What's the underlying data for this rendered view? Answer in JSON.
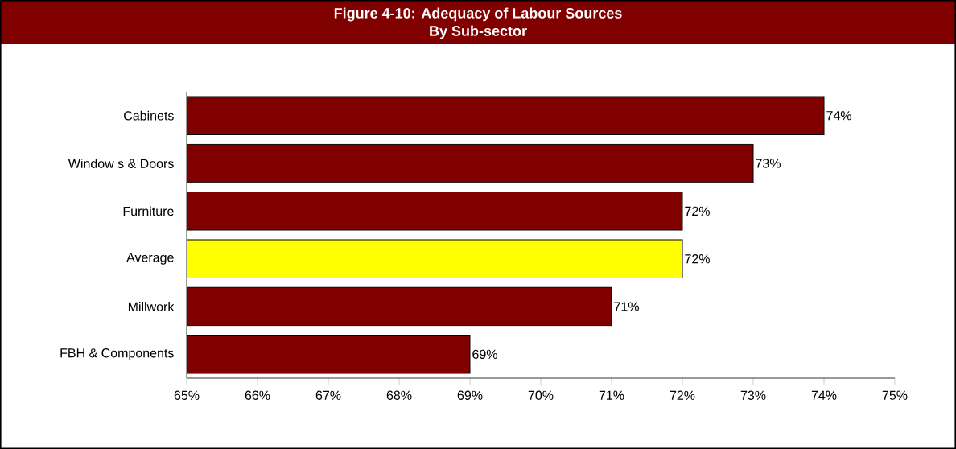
{
  "chart_data": {
    "type": "bar",
    "orientation": "horizontal",
    "title": "Figure 4-10:  Adequacy of Labour Sources",
    "subtitle": "By Sub-sector",
    "categories": [
      "Cabinets",
      "Window s & Doors",
      "Furniture",
      "Average",
      "Millwork",
      "FBH & Components"
    ],
    "values": [
      74,
      73,
      72,
      72,
      71,
      69
    ],
    "colors": [
      "#800000",
      "#800000",
      "#800000",
      "#ffff00",
      "#800000",
      "#800000"
    ],
    "value_labels": [
      "74%",
      "73%",
      "72%",
      "72%",
      "71%",
      "69%"
    ],
    "xlim": [
      65,
      75
    ],
    "xticks": [
      {
        "value": 65,
        "label": "65%"
      },
      {
        "value": 66,
        "label": "66%"
      },
      {
        "value": 67,
        "label": "67%"
      },
      {
        "value": 68,
        "label": "68%"
      },
      {
        "value": 69,
        "label": "69%"
      },
      {
        "value": 70,
        "label": "70%"
      },
      {
        "value": 71,
        "label": "71%"
      },
      {
        "value": 72,
        "label": "72%"
      },
      {
        "value": 73,
        "label": "73%"
      },
      {
        "value": 74,
        "label": "74%"
      },
      {
        "value": 75,
        "label": "75%"
      }
    ]
  }
}
